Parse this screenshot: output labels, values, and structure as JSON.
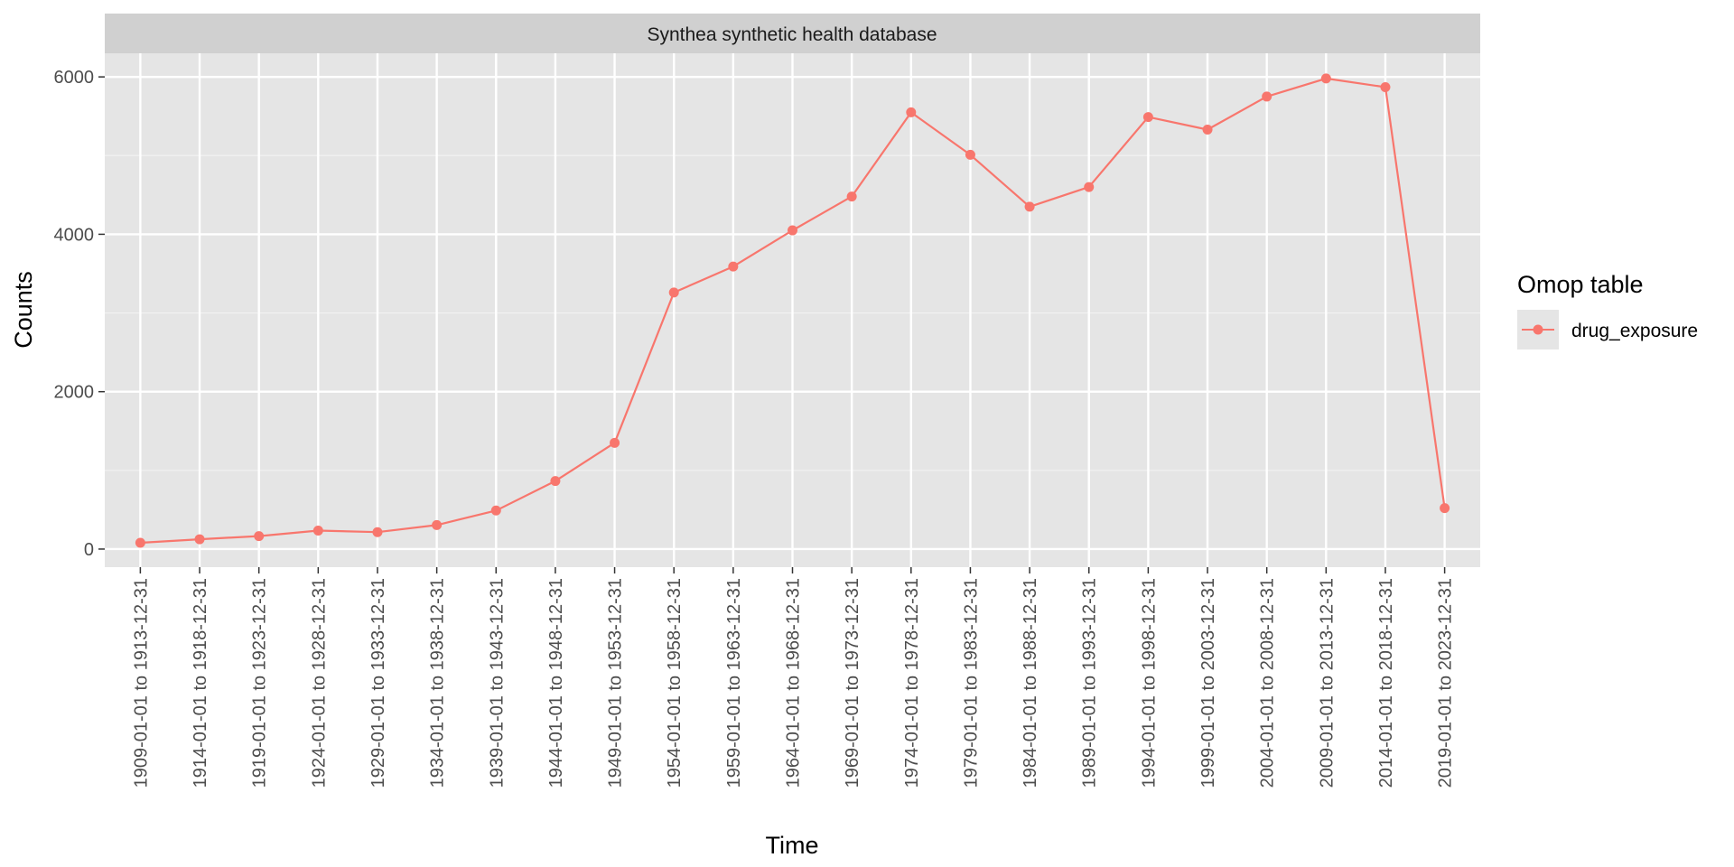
{
  "chart_data": {
    "type": "line",
    "title": "",
    "facet_label": "Synthea synthetic health database",
    "xlabel": "Time",
    "ylabel": "Counts",
    "ylim": [
      -230,
      6300
    ],
    "yticks": [
      0,
      2000,
      4000,
      6000
    ],
    "y_tick_labels": [
      "0",
      "2000",
      "4000",
      "6000"
    ],
    "grid": true,
    "legend": {
      "title": "Omop table",
      "placement": "right"
    },
    "categories": [
      "1909-01-01 to 1913-12-31",
      "1914-01-01 to 1918-12-31",
      "1919-01-01 to 1923-12-31",
      "1924-01-01 to 1928-12-31",
      "1929-01-01 to 1933-12-31",
      "1934-01-01 to 1938-12-31",
      "1939-01-01 to 1943-12-31",
      "1944-01-01 to 1948-12-31",
      "1949-01-01 to 1953-12-31",
      "1954-01-01 to 1958-12-31",
      "1959-01-01 to 1963-12-31",
      "1964-01-01 to 1968-12-31",
      "1969-01-01 to 1973-12-31",
      "1974-01-01 to 1978-12-31",
      "1979-01-01 to 1983-12-31",
      "1984-01-01 to 1988-12-31",
      "1989-01-01 to 1993-12-31",
      "1994-01-01 to 1998-12-31",
      "1999-01-01 to 2003-12-31",
      "2004-01-01 to 2008-12-31",
      "2009-01-01 to 2013-12-31",
      "2014-01-01 to 2018-12-31",
      "2019-01-01 to 2023-12-31"
    ],
    "series": [
      {
        "name": "drug_exposure",
        "color": "#F8766D",
        "values": [
          80,
          125,
          165,
          235,
          215,
          305,
          490,
          865,
          1350,
          3260,
          3590,
          4050,
          4480,
          5550,
          5010,
          4350,
          4600,
          5490,
          5330,
          5750,
          5980,
          5870,
          520
        ]
      }
    ]
  },
  "colors": {
    "panel_bg": "#E5E5E5",
    "strip_bg": "#D0D0D0",
    "grid": "#FFFFFF"
  }
}
